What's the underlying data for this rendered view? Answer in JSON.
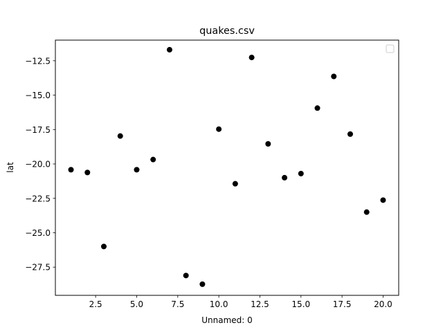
{
  "chart_data": {
    "type": "scatter",
    "title": "quakes.csv",
    "xlabel": "Unnamed: 0",
    "ylabel": "lat",
    "xlim": [
      0.05,
      20.95
    ],
    "ylim": [
      -29.55,
      -11.0
    ],
    "x_ticks": [
      2.5,
      5.0,
      7.5,
      10.0,
      12.5,
      15.0,
      17.5,
      20.0
    ],
    "x_tick_labels": [
      "2.5",
      "5.0",
      "7.5",
      "10.0",
      "12.5",
      "15.0",
      "17.5",
      "20.0"
    ],
    "y_ticks": [
      -27.5,
      -25.0,
      -22.5,
      -20.0,
      -17.5,
      -15.0,
      -12.5
    ],
    "y_tick_labels": [
      "−27.5",
      "−25.0",
      "−22.5",
      "−20.0",
      "−17.5",
      "−15.0",
      "−12.5"
    ],
    "x": [
      1,
      2,
      3,
      4,
      5,
      6,
      7,
      8,
      9,
      10,
      11,
      12,
      13,
      14,
      15,
      16,
      17,
      18,
      19,
      20
    ],
    "y": [
      -20.42,
      -20.62,
      -26.0,
      -17.97,
      -20.42,
      -19.68,
      -11.7,
      -28.11,
      -28.74,
      -17.47,
      -21.44,
      -12.26,
      -18.54,
      -21.0,
      -20.7,
      -15.94,
      -13.64,
      -17.83,
      -23.5,
      -22.63
    ],
    "marker_color": "#000000",
    "grid": false,
    "legend": "top-right (empty)"
  }
}
